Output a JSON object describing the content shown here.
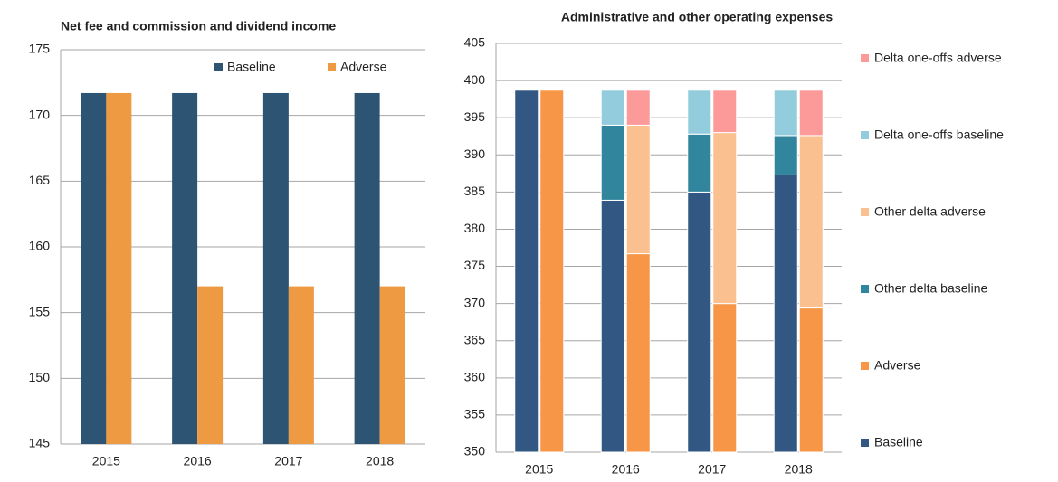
{
  "chart_data": [
    {
      "type": "bar",
      "title": "Net fee and commission and dividend income",
      "categories": [
        "2015",
        "2016",
        "2017",
        "2018"
      ],
      "series": [
        {
          "name": "Baseline",
          "color": "#2e5473",
          "values": [
            171.7,
            171.7,
            171.7,
            171.7
          ]
        },
        {
          "name": "Adverse",
          "color": "#ee9a42",
          "values": [
            171.7,
            157.0,
            157.0,
            157.0
          ]
        }
      ],
      "ylim": [
        145,
        175
      ],
      "yticks": [
        145,
        150,
        155,
        160,
        165,
        170,
        175
      ],
      "grid": true,
      "legend": "top"
    },
    {
      "type": "stacked_bar",
      "title": "Administrative and other operating expenses",
      "categories": [
        "2015",
        "2016",
        "2017",
        "2018"
      ],
      "series": [
        {
          "name": "Baseline",
          "color": "#315782",
          "stack": "Baseline",
          "values": [
            398.7,
            383.9,
            385.0,
            387.3
          ]
        },
        {
          "name": "Adverse",
          "color": "#f79646",
          "stack": "Adverse",
          "values": [
            398.7,
            376.7,
            370.0,
            369.4
          ]
        },
        {
          "name": "Other delta baseline",
          "color": "#31859c",
          "stack": "Baseline",
          "values": [
            0,
            10.1,
            7.8,
            5.3
          ]
        },
        {
          "name": "Other delta adverse",
          "color": "#fac090",
          "stack": "Adverse",
          "values": [
            0,
            17.3,
            23.0,
            23.2
          ]
        },
        {
          "name": "Delta one-offs baseline",
          "color": "#93cddd",
          "stack": "Baseline",
          "values": [
            0,
            4.7,
            5.9,
            6.1
          ]
        },
        {
          "name": "Delta one-offs adverse",
          "color": "#fc9a9a",
          "stack": "Adverse",
          "values": [
            0,
            4.7,
            5.7,
            6.1
          ]
        }
      ],
      "ylim": [
        350,
        405
      ],
      "yticks": [
        350,
        355,
        360,
        365,
        370,
        375,
        380,
        385,
        390,
        395,
        400,
        405
      ],
      "grid": true,
      "legend": "right"
    }
  ]
}
